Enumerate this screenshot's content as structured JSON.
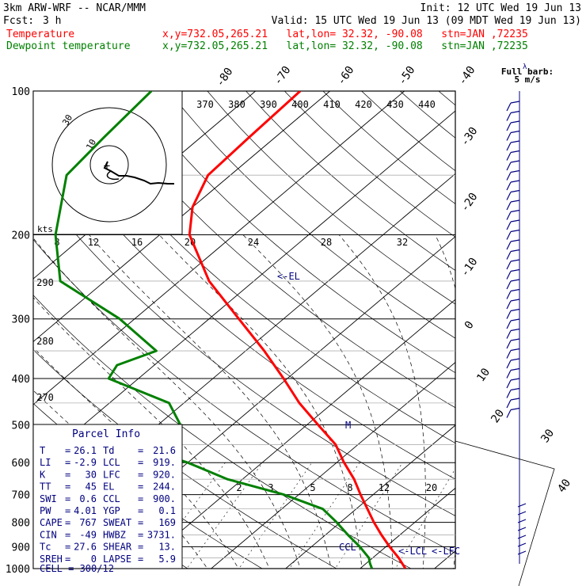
{
  "header": {
    "model": "3km ARW-WRF -- NCAR/MMM",
    "init": "Init: 12 UTC Wed 19 Jun 13",
    "fcst_label": "Fcst:",
    "fcst_value": "3 h",
    "valid": "Valid: 15 UTC Wed 19 Jun 13 (09 MDT Wed 19 Jun 13)",
    "temp_label": "Temperature",
    "dew_label": "Dewpoint temperature",
    "location": "x,y=732.05,265.21   lat,lon= 32.32, -90.08   stn=JAN ,72235"
  },
  "colors": {
    "temperature": "#ff0000",
    "dewpoint": "#008000",
    "navy": "#000080",
    "black": "#000000"
  },
  "chart_data": {
    "type": "line",
    "title": "",
    "pressure_axis_labels": [
      "100",
      "200",
      "300",
      "400",
      "500",
      "600",
      "700",
      "800",
      "900",
      "1000"
    ],
    "pressure_levels": [
      100,
      200,
      300,
      400,
      500,
      600,
      700,
      800,
      900,
      1000
    ],
    "isotherm_labels": [
      "-80",
      "-70",
      "-60",
      "-50",
      "-40",
      "-30",
      "-20",
      "-10",
      "0",
      "10",
      "20",
      "30",
      "40"
    ],
    "theta_labels_top": [
      "370",
      "380",
      "390",
      "400",
      "410",
      "420",
      "430",
      "440"
    ],
    "theta_labels_left": [
      "290",
      "280",
      "270"
    ],
    "mixing_ratio_labels": [
      "2",
      "3",
      "5",
      "8",
      "12",
      "20"
    ],
    "hodograph": {
      "unit": "kts",
      "ring_labels": [
        "10",
        "30"
      ],
      "speed_labels": [
        "8",
        "12",
        "16",
        "20",
        "24",
        "28",
        "32"
      ]
    },
    "full_barb_label": "Full barb:",
    "full_barb_value": "5 m/s",
    "series": [
      {
        "name": "Temperature",
        "pressure": [
          1000,
          950,
          900,
          850,
          800,
          750,
          700,
          650,
          600,
          550,
          500,
          450,
          400,
          350,
          300,
          250,
          200,
          175,
          150,
          125,
          100
        ],
        "values": [
          26.1,
          23.5,
          20.5,
          17.5,
          14.5,
          11.5,
          8.3,
          5.0,
          1.0,
          -3.0,
          -8.5,
          -14.5,
          -20.5,
          -27.5,
          -36.0,
          -46.0,
          -56.0,
          -60.0,
          -63.0,
          -63.5,
          -64.0
        ]
      },
      {
        "name": "Dewpoint temperature",
        "pressure": [
          1000,
          975,
          950,
          900,
          850,
          800,
          750,
          700,
          650,
          600,
          570,
          550,
          500,
          450,
          400,
          375,
          350,
          300,
          250,
          200,
          150,
          125,
          100
        ],
        "values": [
          21.6,
          20.5,
          19.5,
          16.5,
          13.0,
          9.5,
          5.5,
          -2.0,
          -12.0,
          -20.0,
          -26.0,
          -26.5,
          -27.0,
          -32.0,
          -44.0,
          -45.0,
          -42.0,
          -52.0,
          -66.0,
          -74.0,
          -82.0,
          -83.0,
          -84.0
        ]
      }
    ],
    "annotations": [
      "EL",
      "M",
      "CCL",
      "LCL",
      "LFC"
    ]
  },
  "parcel_info": {
    "title": "Parcel Info",
    "rows": [
      [
        "T",
        "26.1",
        "Td",
        "21.6"
      ],
      [
        "LI",
        "-2.9",
        "LCL",
        "919."
      ],
      [
        "K",
        "30",
        "LFC",
        "920."
      ],
      [
        "TT",
        "45",
        "EL",
        "244."
      ],
      [
        "SWI",
        "0.6",
        "CCL",
        "900."
      ],
      [
        "PW",
        "4.01",
        "YGP",
        "0.1"
      ],
      [
        "CAPE",
        "767",
        "SWEAT",
        "169"
      ],
      [
        "CIN",
        "-49",
        "HWBZ",
        "3731."
      ],
      [
        "Tc",
        "27.6",
        "SHEAR",
        "13."
      ],
      [
        "SREH",
        "0",
        "LAPSE",
        "5.9"
      ]
    ],
    "cell": "CELL = 300/12"
  }
}
